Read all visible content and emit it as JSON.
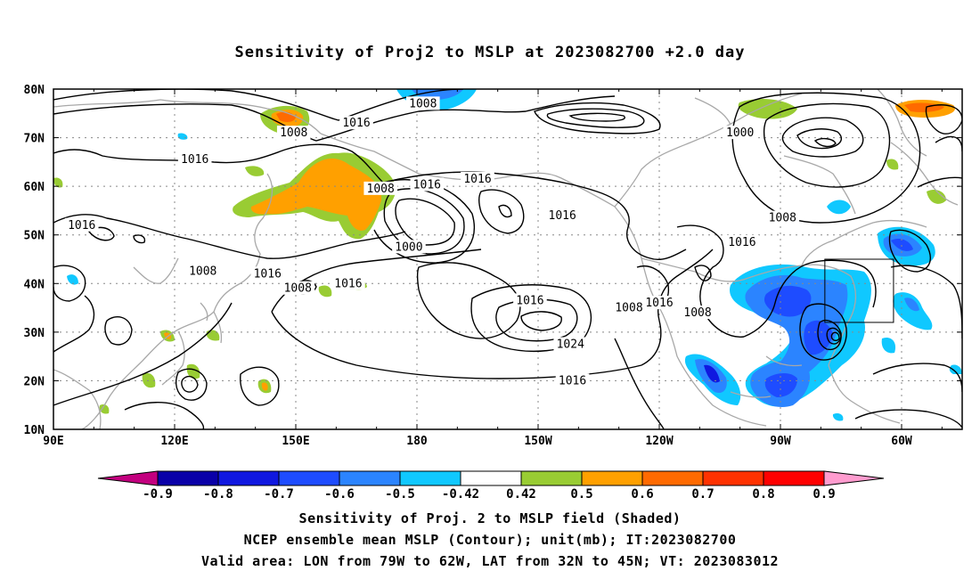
{
  "title": "Sensitivity of Proj2 to MSLP at 2023082700 +2.0 day",
  "map": {
    "lat_labels": [
      "80N",
      "70N",
      "60N",
      "50N",
      "40N",
      "30N",
      "20N",
      "10N"
    ],
    "lon_labels": [
      "90E",
      "120E",
      "150E",
      "180",
      "150W",
      "120W",
      "90W",
      "60W"
    ],
    "contour_labels": [
      {
        "text": "1008",
        "lon": 149.5,
        "lat": 71.0
      },
      {
        "text": "1008",
        "lon": 181.5,
        "lat": 77.0
      },
      {
        "text": "1016",
        "lon": 165.0,
        "lat": 73.0
      },
      {
        "text": "1000",
        "lon": 260.0,
        "lat": 71.0
      },
      {
        "text": "1016",
        "lon": 125.0,
        "lat": 65.5
      },
      {
        "text": "1008",
        "lon": 171.0,
        "lat": 59.5
      },
      {
        "text": "1016",
        "lon": 182.5,
        "lat": 60.3
      },
      {
        "text": "1016",
        "lon": 195.0,
        "lat": 61.5
      },
      {
        "text": "1016",
        "lon": 97.0,
        "lat": 52.0
      },
      {
        "text": "1000",
        "lon": 178.0,
        "lat": 47.5
      },
      {
        "text": "1016",
        "lon": 216.0,
        "lat": 54.0
      },
      {
        "text": "1008",
        "lon": 270.5,
        "lat": 53.5
      },
      {
        "text": "1016",
        "lon": 260.5,
        "lat": 48.5
      },
      {
        "text": "1008",
        "lon": 127.0,
        "lat": 42.5
      },
      {
        "text": "1016",
        "lon": 143.0,
        "lat": 42.0
      },
      {
        "text": "1008",
        "lon": 150.5,
        "lat": 39.0
      },
      {
        "text": "1016",
        "lon": 163.0,
        "lat": 40.0
      },
      {
        "text": "1016",
        "lon": 208.0,
        "lat": 36.5
      },
      {
        "text": "1008",
        "lon": 232.5,
        "lat": 35.0
      },
      {
        "text": "1016",
        "lon": 240.0,
        "lat": 36.0
      },
      {
        "text": "1008",
        "lon": 249.5,
        "lat": 34.0
      },
      {
        "text": "1024",
        "lon": 218.0,
        "lat": 27.5
      },
      {
        "text": "1016",
        "lon": 218.5,
        "lat": 20.0
      }
    ],
    "valid_box": {
      "lon_min": 281,
      "lon_max": 298,
      "lat_min": 32,
      "lat_max": 45
    },
    "low_center": {
      "lon": 294.5,
      "lat": 29.0
    }
  },
  "colorbar": {
    "levels": [
      "-0.9",
      "-0.8",
      "-0.7",
      "-0.6",
      "-0.5",
      "-0.42",
      "0.42",
      "0.5",
      "0.6",
      "0.7",
      "0.8",
      "0.9"
    ],
    "colors": [
      "#c3007f",
      "#0a00a8",
      "#1018e0",
      "#1e4cff",
      "#2b84ff",
      "#10c8ff",
      "#ffffff",
      "#99cc33",
      "#ffa000",
      "#ff6a00",
      "#ff3200",
      "#ff0000",
      "#ff9ccf"
    ]
  },
  "captions": [
    "Sensitivity of Proj. 2 to MSLP field (Shaded)",
    "NCEP ensemble mean MSLP (Contour); unit(mb); IT:2023082700",
    "Valid area: LON from 79W to 62W, LAT from 32N to 45N; VT: 2023083012"
  ]
}
